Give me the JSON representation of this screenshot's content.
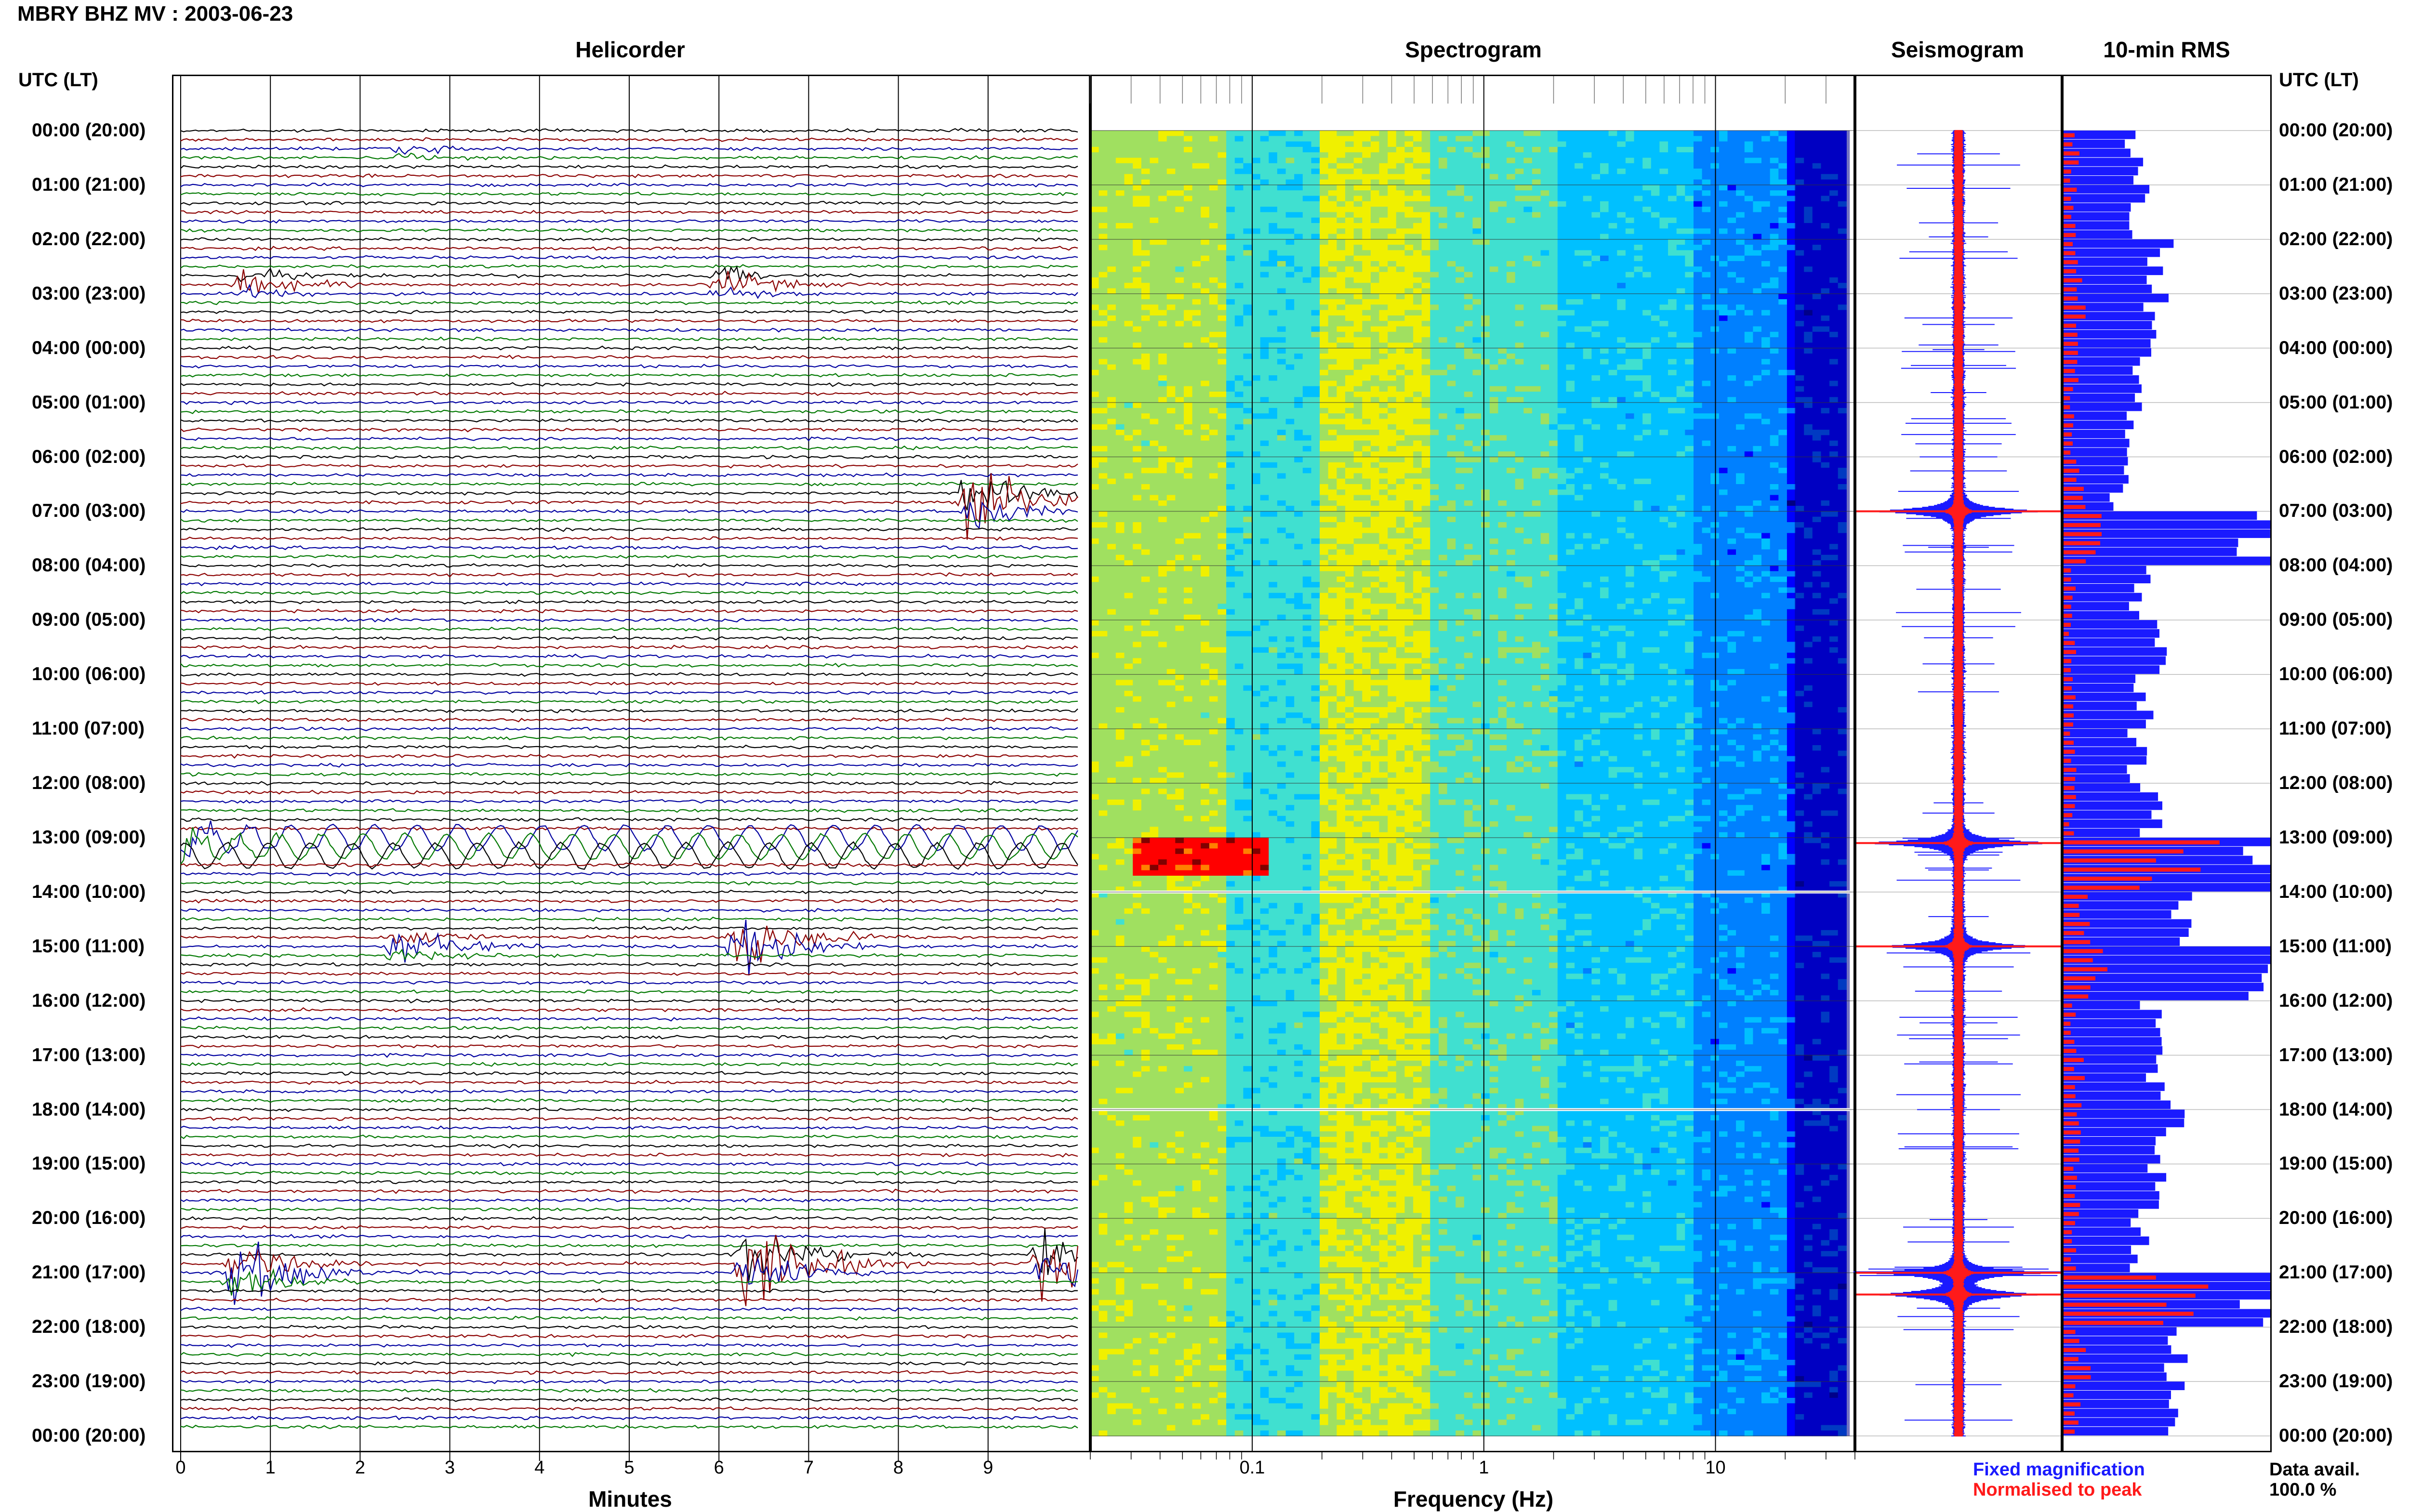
{
  "header": {
    "title": "MBRY BHZ MV : 2003-06-23"
  },
  "panels": {
    "helicorder": "Helicorder",
    "spectrogram": "Spectrogram",
    "seismogram": "Seismogram",
    "rms": "10-min RMS"
  },
  "time_axis": {
    "left_header": "UTC (LT)",
    "right_header": "UTC (LT)",
    "hours": [
      "00:00 (20:00)",
      "01:00 (21:00)",
      "02:00 (22:00)",
      "03:00 (23:00)",
      "04:00 (00:00)",
      "05:00 (01:00)",
      "06:00 (02:00)",
      "07:00 (03:00)",
      "08:00 (04:00)",
      "09:00 (05:00)",
      "10:00 (06:00)",
      "11:00 (07:00)",
      "12:00 (08:00)",
      "13:00 (09:00)",
      "14:00 (10:00)",
      "15:00 (11:00)",
      "16:00 (12:00)",
      "17:00 (13:00)",
      "18:00 (14:00)",
      "19:00 (15:00)",
      "20:00 (16:00)",
      "21:00 (17:00)",
      "22:00 (18:00)",
      "23:00 (19:00)",
      "00:00 (20:00)"
    ]
  },
  "helicorder_axis": {
    "label": "Minutes",
    "ticks": [
      "0",
      "1",
      "2",
      "3",
      "4",
      "5",
      "6",
      "7",
      "8",
      "9"
    ],
    "trace_colors": [
      "#000000",
      "#8b0000",
      "#0000a0",
      "#007800"
    ]
  },
  "spectrogram_axis": {
    "label": "Frequency (Hz)",
    "ticks": [
      "0.1",
      "1",
      "10"
    ],
    "scale": "log"
  },
  "legend": {
    "fixed": "Fixed magnification",
    "normalised": "Normalised to peak",
    "fixed_color": "#1a1aff",
    "normalised_color": "#ff1a1a"
  },
  "data_availability": {
    "label": "Data avail.",
    "value": "100.0 %"
  },
  "chart_data": [
    {
      "type": "line",
      "name": "helicorder",
      "x_unit": "minutes",
      "xlim": [
        0,
        10
      ],
      "rows_per_hour": 6,
      "events": [
        {
          "hour": 0.4,
          "minute": 2.4,
          "amplitude": 0.4,
          "color": "#000000"
        },
        {
          "hour": 2.8,
          "minute": 0.7,
          "amplitude": 0.7,
          "color": "#8b0000"
        },
        {
          "hour": 2.8,
          "minute": 6.0,
          "amplitude": 0.7,
          "color": "#000000"
        },
        {
          "hour": 6.8,
          "minute": 8.8,
          "amplitude": 2.2,
          "color": "#8b0000"
        },
        {
          "hour": 13.1,
          "minute": 0.0,
          "amplitude": 1.2,
          "color": "#mixed"
        },
        {
          "hour": 14.9,
          "minute": 6.2,
          "amplitude": 1.8,
          "color": "#0000a0"
        },
        {
          "hour": 15.0,
          "minute": 2.4,
          "amplitude": 0.9,
          "color": "#007800"
        },
        {
          "hour": 20.8,
          "minute": 6.3,
          "amplitude": 2.6,
          "color": "#8b0000"
        },
        {
          "hour": 21.0,
          "minute": 0.6,
          "amplitude": 1.8,
          "color": "#000000"
        },
        {
          "hour": 20.8,
          "minute": 9.6,
          "amplitude": 2.4,
          "color": "#007800"
        }
      ]
    },
    {
      "type": "heatmap",
      "name": "spectrogram",
      "x_unit": "Hz",
      "xlim": [
        0.02,
        40
      ],
      "xscale": "log",
      "colormap": [
        "#000080",
        "#0000ff",
        "#0080ff",
        "#00c0ff",
        "#40e0d0",
        "#a0e060",
        "#f0f000",
        "#ff8000",
        "#ff0000",
        "#800000"
      ],
      "features": [
        {
          "hour": 13.1,
          "freq_low": 0.03,
          "freq_high": 0.09,
          "level": "high"
        },
        {
          "hour": 14.0,
          "note": "white gap"
        },
        {
          "hour": 18.0,
          "note": "white gap"
        }
      ]
    },
    {
      "type": "line",
      "name": "seismogram",
      "peaks": [
        {
          "hour": 13.1,
          "amplitude": 1.0
        },
        {
          "hour": 21.0,
          "amplitude": 1.0
        },
        {
          "hour": 21.4,
          "amplitude": 0.9
        },
        {
          "hour": 7.0,
          "amplitude": 0.9
        },
        {
          "hour": 15.0,
          "amplitude": 0.8
        }
      ]
    },
    {
      "type": "bar",
      "name": "10-min RMS",
      "series": [
        {
          "name": "Fixed magnification",
          "color": "#1a1aff"
        },
        {
          "name": "Normalised to peak",
          "color": "#ff1a1a"
        }
      ],
      "hourly_fixed": [
        0.35,
        0.4,
        0.5,
        0.45,
        0.4,
        0.35,
        0.28,
        0.95,
        0.38,
        0.45,
        0.4,
        0.38,
        0.42,
        1.0,
        0.55,
        1.0,
        0.45,
        0.48,
        0.52,
        0.45,
        0.4,
        1.0,
        0.55,
        0.6
      ],
      "hourly_norm": [
        0.06,
        0.05,
        0.08,
        0.08,
        0.06,
        0.05,
        0.08,
        0.15,
        0.05,
        0.05,
        0.05,
        0.05,
        0.05,
        0.6,
        0.1,
        0.2,
        0.06,
        0.08,
        0.1,
        0.07,
        0.06,
        0.55,
        0.1,
        0.08
      ]
    }
  ]
}
